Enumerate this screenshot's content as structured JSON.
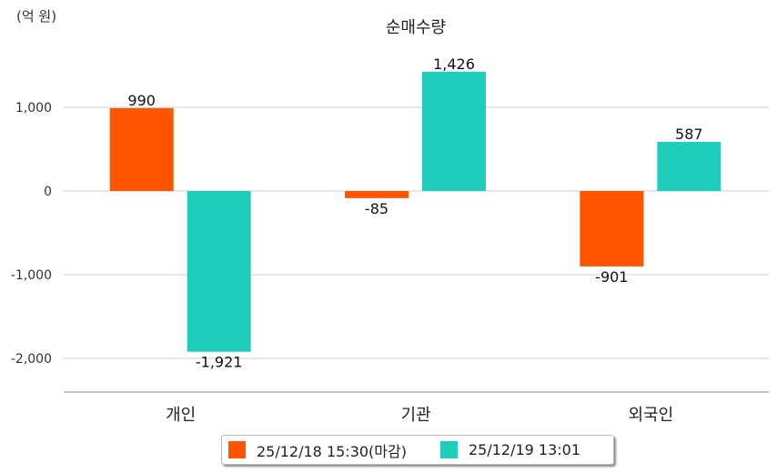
{
  "chart_data": {
    "type": "bar",
    "title": "순매수량",
    "unit_label": "(억 원)",
    "categories": [
      "개인",
      "기관",
      "외국인"
    ],
    "series": [
      {
        "name": "25/12/18 15:30(마감)",
        "color": "#ff5500",
        "values": [
          990,
          -85,
          -901
        ],
        "labels": [
          "990",
          "-85",
          "-901"
        ]
      },
      {
        "name": "25/12/19 13:01",
        "color": "#1ecdbb",
        "values": [
          -1921,
          1426,
          587
        ],
        "labels": [
          "-1,921",
          "1,426",
          "587"
        ]
      }
    ],
    "yticks": [
      1000,
      0,
      -1000,
      -2000
    ],
    "ytick_labels": [
      "1,000",
      "0",
      "-1,000",
      "-2,000"
    ],
    "ylim": [
      -2400,
      1800
    ],
    "grid": true,
    "legend_position": "bottom"
  }
}
